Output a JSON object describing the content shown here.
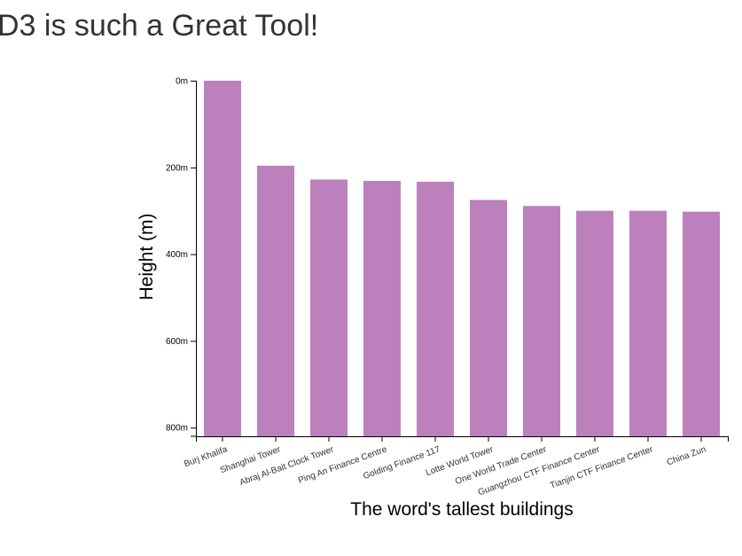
{
  "page": {
    "title": "D3 is such a Great Tool!"
  },
  "chart_data": {
    "type": "bar",
    "categories": [
      "Burj Khalifa",
      "Shanghai Tower",
      "Abraj Al-Bait Clock Tower",
      "Ping An Finance Centre",
      "Golding Finance 117",
      "Lotte World Tower",
      "One World Trade Center",
      "Guangzhou CTF Finance Center",
      "Tianjin CTF Finance Center",
      "China Zun"
    ],
    "values": [
      0,
      196,
      228,
      231,
      233,
      275,
      289,
      300,
      300,
      302
    ],
    "xlabel": "The word's tallest buildings",
    "ylabel": "Height (m)",
    "ylim": [
      0,
      820
    ],
    "y_ticks": [
      "0m",
      "200m",
      "400m",
      "600m",
      "800m"
    ],
    "y_tick_values": [
      0,
      200,
      400,
      600,
      800
    ],
    "bar_color": "#bc80bd",
    "grid": false
  }
}
